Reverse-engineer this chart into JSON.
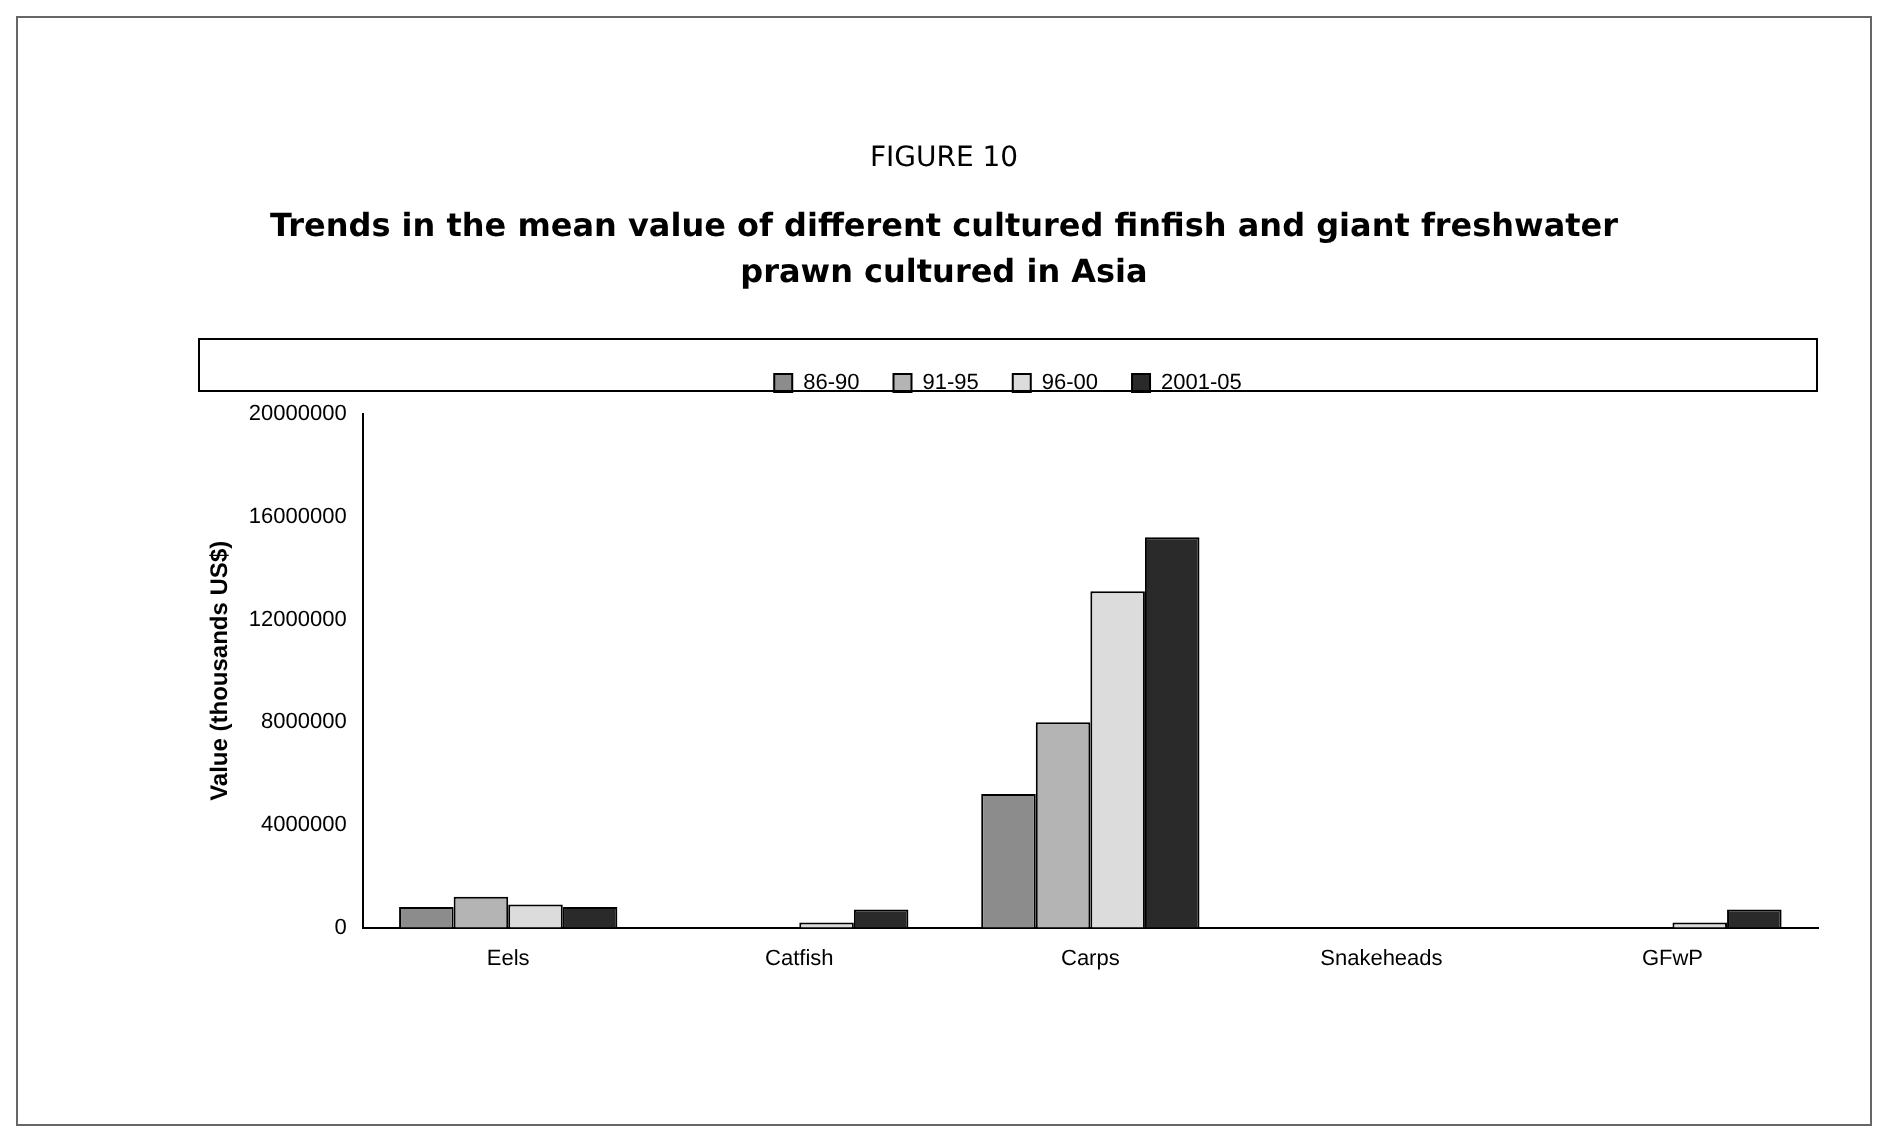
{
  "chart_data": {
    "type": "bar",
    "subtitle": "FIGURE 10",
    "title": "Trends in the mean value of different cultured finfish and giant freshwater prawn cultured in Asia",
    "ylabel": "Value (thousands US$)",
    "categories": [
      "Eels",
      "Catfish",
      "Carps",
      "Snakeheads",
      "GFwP"
    ],
    "series": [
      {
        "name": "86-90",
        "color": "#8c8c8c",
        "values": [
          800000,
          0,
          5200000,
          0,
          0
        ]
      },
      {
        "name": "91-95",
        "color": "#b4b4b4",
        "values": [
          1200000,
          0,
          8000000,
          0,
          0
        ]
      },
      {
        "name": "96-00",
        "color": "#dcdcdc",
        "values": [
          900000,
          200000,
          13100000,
          0,
          200000
        ]
      },
      {
        "name": "2001-05",
        "color": "#2a2a2a",
        "values": [
          800000,
          700000,
          15200000,
          0,
          700000
        ]
      }
    ],
    "ylim": [
      0,
      20000000
    ],
    "yticks": [
      0,
      4000000,
      8000000,
      12000000,
      16000000,
      20000000
    ],
    "grid": false,
    "legend": "top"
  }
}
